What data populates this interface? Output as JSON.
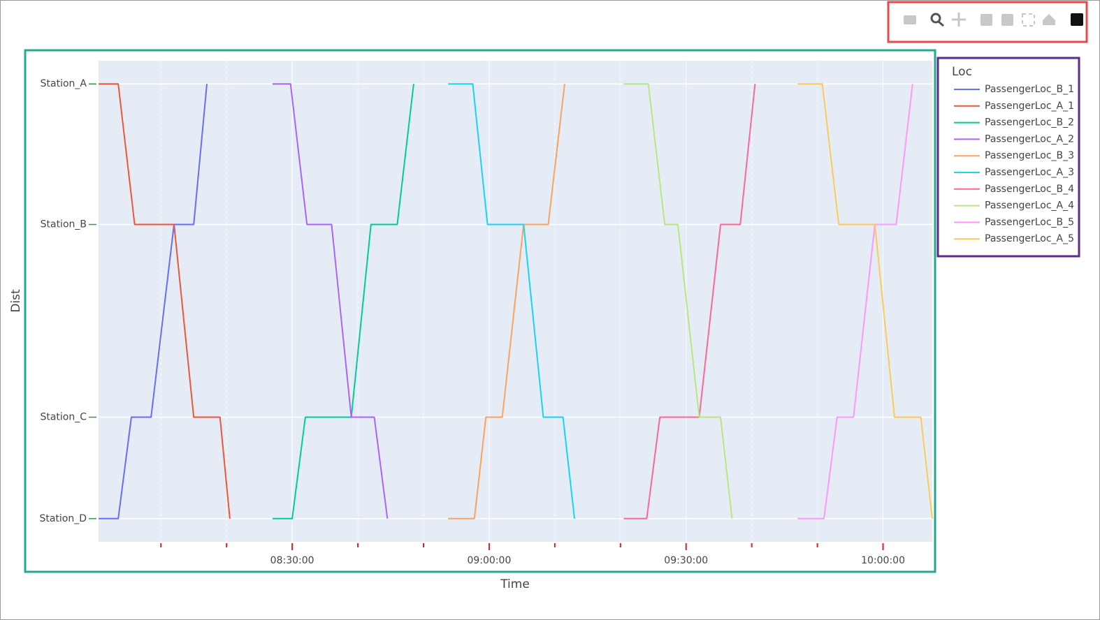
{
  "chart_data": {
    "type": "line",
    "x_label": "Time",
    "y_label": "Dist",
    "legend_title": "Loc",
    "xlim": [
      "08:00:30",
      "10:07:30"
    ],
    "xticks": [
      "08:30:00",
      "09:00:00",
      "09:30:00",
      "10:00:00"
    ],
    "ylim": [
      -1.6,
      31.6
    ],
    "yticks": [
      {
        "value": 0,
        "label": "Station_D"
      },
      {
        "value": 7,
        "label": "Station_C"
      },
      {
        "value": 20.3,
        "label": "Station_B"
      },
      {
        "value": 30,
        "label": "Station_A"
      }
    ],
    "grid": true,
    "series": [
      {
        "name": "PassengerLoc_B_1",
        "color": "#636efa",
        "x": [
          "08:00:30",
          "08:03:30",
          "08:05:30",
          "08:08:30",
          "08:12:00",
          "08:15:00",
          "08:17:00"
        ],
        "values": [
          0,
          0,
          7,
          7,
          20.3,
          20.3,
          30
        ]
      },
      {
        "name": "PassengerLoc_A_1",
        "color": "#ef553b",
        "x": [
          "08:00:30",
          "08:03:30",
          "08:06:00",
          "08:12:00",
          "08:15:00",
          "08:19:00",
          "08:20:30"
        ],
        "values": [
          30,
          30,
          20.3,
          20.3,
          7,
          7,
          0
        ]
      },
      {
        "name": "PassengerLoc_B_2",
        "color": "#00cc96",
        "x": [
          "08:27:00",
          "08:30:00",
          "08:32:00",
          "08:39:00",
          "08:42:00",
          "08:46:00",
          "08:48:30"
        ],
        "values": [
          0,
          0,
          7,
          7,
          20.3,
          20.3,
          30
        ]
      },
      {
        "name": "PassengerLoc_A_2",
        "color": "#ab63fa",
        "x": [
          "08:27:00",
          "08:29:45",
          "08:32:15",
          "08:36:00",
          "08:39:00",
          "08:42:30",
          "08:44:30"
        ],
        "values": [
          30,
          30,
          20.3,
          20.3,
          7,
          7,
          0
        ]
      },
      {
        "name": "PassengerLoc_B_3",
        "color": "#ffa15a",
        "x": [
          "08:53:45",
          "08:57:45",
          "08:59:30",
          "09:02:00",
          "09:05:15",
          "09:09:00",
          "09:11:30"
        ],
        "values": [
          0,
          0,
          7,
          7,
          20.3,
          20.3,
          30
        ]
      },
      {
        "name": "PassengerLoc_A_3",
        "color": "#19d3f3",
        "x": [
          "08:53:45",
          "08:57:30",
          "08:59:45",
          "09:05:15",
          "09:08:15",
          "09:11:15",
          "09:13:00"
        ],
        "values": [
          30,
          30,
          20.3,
          20.3,
          7,
          7,
          0
        ]
      },
      {
        "name": "PassengerLoc_B_4",
        "color": "#ff6692",
        "x": [
          "09:20:30",
          "09:24:00",
          "09:26:00",
          "09:32:00",
          "09:35:15",
          "09:38:15",
          "09:40:30"
        ],
        "values": [
          0,
          0,
          7,
          7,
          20.3,
          20.3,
          30
        ]
      },
      {
        "name": "PassengerLoc_A_4",
        "color": "#b6e880",
        "x": [
          "09:20:30",
          "09:24:15",
          "09:26:45",
          "09:28:45",
          "09:32:00",
          "09:35:15",
          "09:37:00"
        ],
        "values": [
          30,
          30,
          20.3,
          20.3,
          7,
          7,
          0
        ]
      },
      {
        "name": "PassengerLoc_B_5",
        "color": "#ff97ff",
        "x": [
          "09:47:00",
          "09:51:00",
          "09:53:00",
          "09:55:30",
          "09:58:45",
          "10:02:00",
          "10:04:30"
        ],
        "values": [
          0,
          0,
          7,
          7,
          20.3,
          20.3,
          30
        ]
      },
      {
        "name": "PassengerLoc_A_5",
        "color": "#fecb52",
        "x": [
          "09:47:00",
          "09:50:45",
          "09:53:15",
          "09:58:45",
          "10:01:45",
          "10:05:45",
          "10:07:30"
        ],
        "values": [
          30,
          30,
          20.3,
          20.3,
          7,
          7,
          0
        ]
      }
    ]
  }
}
